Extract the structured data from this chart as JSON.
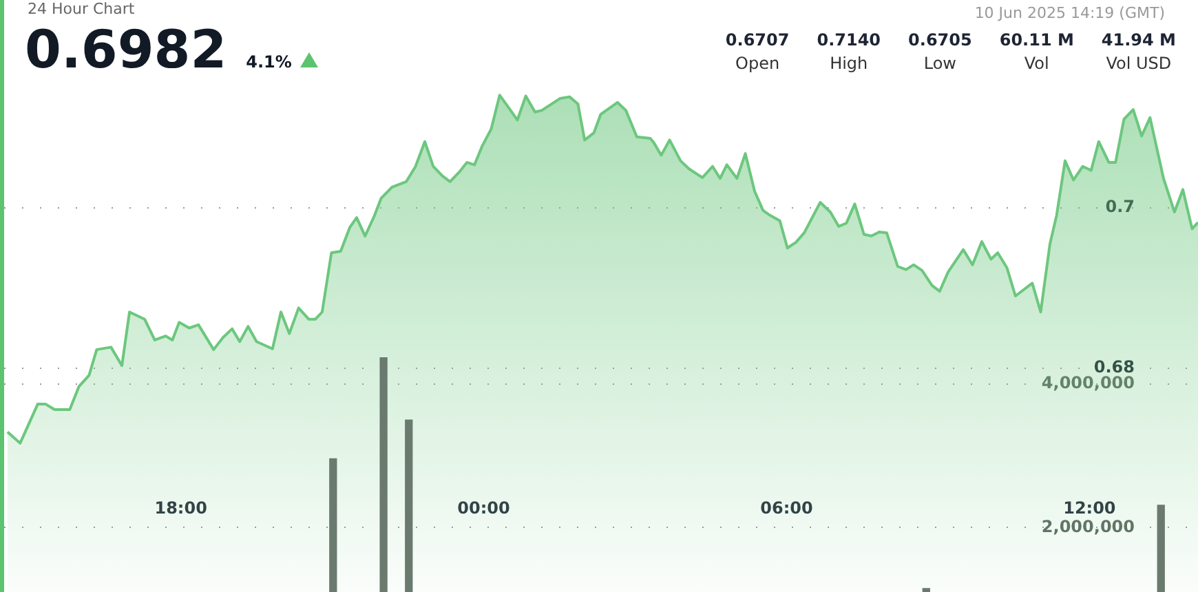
{
  "chart_data": {
    "type": "area",
    "title": "24 Hour Chart",
    "annotations": [
      "0.6982",
      "4.1%",
      "10 Jun 2025 14:19 (GMT)",
      "0.6707",
      "Open",
      "0.7140",
      "High",
      "0.6705",
      "Low",
      "60.11 M",
      "Vol",
      "41.94 M",
      "Vol USD"
    ],
    "xlim": [
      "2025-06-09T14:30",
      "2025-06-10T14:09"
    ],
    "xticks": [
      {
        "value": "2025-06-09T18:00",
        "label": "18:00"
      },
      {
        "value": "2025-06-10T00:00",
        "label": "00:00"
      },
      {
        "value": "2025-06-10T06:00",
        "label": "06:00"
      },
      {
        "value": "2025-06-10T12:00",
        "label": "12:00"
      }
    ],
    "ylim": [
      0.652,
      0.726
    ],
    "yticks": [
      0.68,
      0.7
    ],
    "y2lim": [
      1100000,
      9360000
    ],
    "y2ticks": [
      {
        "value": 2000000,
        "label": "2,000,000"
      },
      {
        "value": 4000000,
        "label": "4,000,000"
      }
    ],
    "grid": "y",
    "legend": false,
    "marker": "none",
    "line_style": "solid",
    "series": [
      {
        "color": "#6cc77e",
        "x": [
          "2025-06-09T14:34",
          "2025-06-09T14:49",
          "2025-06-09T15:10",
          "2025-06-09T15:19",
          "2025-06-09T15:30",
          "2025-06-09T15:48",
          "2025-06-09T15:59",
          "2025-06-09T16:11",
          "2025-06-09T16:20",
          "2025-06-09T16:37",
          "2025-06-09T16:50",
          "2025-06-09T16:59",
          "2025-06-09T17:17",
          "2025-06-09T17:29",
          "2025-06-09T17:42",
          "2025-06-09T17:50",
          "2025-06-09T17:58",
          "2025-06-09T18:10",
          "2025-06-09T18:21",
          "2025-06-09T18:39",
          "2025-06-09T18:50",
          "2025-06-09T19:01",
          "2025-06-09T19:10",
          "2025-06-09T19:20",
          "2025-06-09T19:30",
          "2025-06-09T19:49",
          "2025-06-09T19:59",
          "2025-06-09T20:09",
          "2025-06-09T20:20",
          "2025-06-09T20:32",
          "2025-06-09T20:40",
          "2025-06-09T20:48",
          "2025-06-09T20:59",
          "2025-06-09T21:10",
          "2025-06-09T21:21",
          "2025-06-09T21:29",
          "2025-06-09T21:39",
          "2025-06-09T21:50",
          "2025-06-09T21:58",
          "2025-06-09T22:11",
          "2025-06-09T22:28",
          "2025-06-09T22:39",
          "2025-06-09T22:50",
          "2025-06-09T23:00",
          "2025-06-09T23:11",
          "2025-06-09T23:20",
          "2025-06-09T23:31",
          "2025-06-09T23:40",
          "2025-06-09T23:49",
          "2025-06-09T23:58",
          "2025-06-10T00:09",
          "2025-06-10T00:19",
          "2025-06-10T00:30",
          "2025-06-10T00:40",
          "2025-06-10T00:50",
          "2025-06-10T01:01",
          "2025-06-10T01:09",
          "2025-06-10T01:31",
          "2025-06-10T01:42",
          "2025-06-10T01:52",
          "2025-06-10T02:00",
          "2025-06-10T02:11",
          "2025-06-10T02:19",
          "2025-06-10T02:39",
          "2025-06-10T02:49",
          "2025-06-10T03:02",
          "2025-06-10T03:18",
          "2025-06-10T03:22",
          "2025-06-10T03:31",
          "2025-06-10T03:41",
          "2025-06-10T03:54",
          "2025-06-10T04:04",
          "2025-06-10T04:20",
          "2025-06-10T04:32",
          "2025-06-10T04:41",
          "2025-06-10T04:49",
          "2025-06-10T05:01",
          "2025-06-10T05:11",
          "2025-06-10T05:22",
          "2025-06-10T05:32",
          "2025-06-10T05:40",
          "2025-06-10T05:52",
          "2025-06-10T06:01",
          "2025-06-10T06:11",
          "2025-06-10T06:21",
          "2025-06-10T06:40",
          "2025-06-10T06:52",
          "2025-06-10T07:02",
          "2025-06-10T07:11",
          "2025-06-10T07:21",
          "2025-06-10T07:32",
          "2025-06-10T07:41",
          "2025-06-10T07:50",
          "2025-06-10T07:59",
          "2025-06-10T08:12",
          "2025-06-10T08:22",
          "2025-06-10T08:31",
          "2025-06-10T08:41",
          "2025-06-10T08:53",
          "2025-06-10T09:02",
          "2025-06-10T09:12",
          "2025-06-10T09:30",
          "2025-06-10T09:41",
          "2025-06-10T09:52",
          "2025-06-10T10:03",
          "2025-06-10T10:11",
          "2025-06-10T10:22",
          "2025-06-10T10:32",
          "2025-06-10T10:52",
          "2025-06-10T11:02",
          "2025-06-10T11:13",
          "2025-06-10T11:21",
          "2025-06-10T11:31",
          "2025-06-10T11:41",
          "2025-06-10T11:52",
          "2025-06-10T12:02",
          "2025-06-10T12:11",
          "2025-06-10T12:23",
          "2025-06-10T12:31",
          "2025-06-10T12:41",
          "2025-06-10T12:52",
          "2025-06-10T13:02",
          "2025-06-10T13:12",
          "2025-06-10T13:28",
          "2025-06-10T13:41",
          "2025-06-10T13:51",
          "2025-06-10T14:02",
          "2025-06-10T14:09"
        ],
        "values": [
          0.672,
          0.6706,
          0.6755,
          0.6755,
          0.6748,
          0.6748,
          0.6777,
          0.6791,
          0.6823,
          0.6826,
          0.6803,
          0.687,
          0.6861,
          0.6835,
          0.684,
          0.6835,
          0.6857,
          0.685,
          0.6854,
          0.6823,
          0.6838,
          0.6849,
          0.6833,
          0.6852,
          0.6833,
          0.6824,
          0.687,
          0.6843,
          0.6875,
          0.6861,
          0.6861,
          0.687,
          0.6944,
          0.6946,
          0.6976,
          0.6988,
          0.6965,
          0.699,
          0.7012,
          0.7026,
          0.7033,
          0.7052,
          0.7083,
          0.7052,
          0.704,
          0.7033,
          0.7045,
          0.7057,
          0.7054,
          0.7077,
          0.7099,
          0.7141,
          0.7125,
          0.711,
          0.714,
          0.712,
          0.7122,
          0.7137,
          0.7139,
          0.713,
          0.7085,
          0.7094,
          0.7117,
          0.7132,
          0.7122,
          0.7089,
          0.7087,
          0.7082,
          0.7066,
          0.7085,
          0.7059,
          0.7049,
          0.7038,
          0.7052,
          0.7037,
          0.7054,
          0.7037,
          0.7068,
          0.7021,
          0.6997,
          0.6991,
          0.6984,
          0.695,
          0.6957,
          0.6969,
          0.7007,
          0.6995,
          0.6977,
          0.6981,
          0.7005,
          0.6967,
          0.6965,
          0.697,
          0.6969,
          0.6927,
          0.6923,
          0.6929,
          0.6922,
          0.6903,
          0.6896,
          0.692,
          0.6948,
          0.6929,
          0.6958,
          0.6936,
          0.6944,
          0.6925,
          0.689,
          0.6906,
          0.687,
          0.6955,
          0.6991,
          0.7059,
          0.7035,
          0.7052,
          0.7047,
          0.7083,
          0.7057,
          0.7057,
          0.7111,
          0.7123,
          0.709,
          0.7113,
          0.7037,
          0.6995,
          0.7023,
          0.6974,
          0.6982
        ]
      },
      {
        "type": "bar",
        "axis": "y2",
        "color": "#6b7a6f",
        "x": [
          "2025-06-09T21:01",
          "2025-06-09T22:01",
          "2025-06-09T22:31",
          "2025-06-10T08:46",
          "2025-06-10T13:25"
        ],
        "values": [
          2960000,
          4370000,
          3500000,
          1150000,
          2310000
        ]
      }
    ]
  }
}
